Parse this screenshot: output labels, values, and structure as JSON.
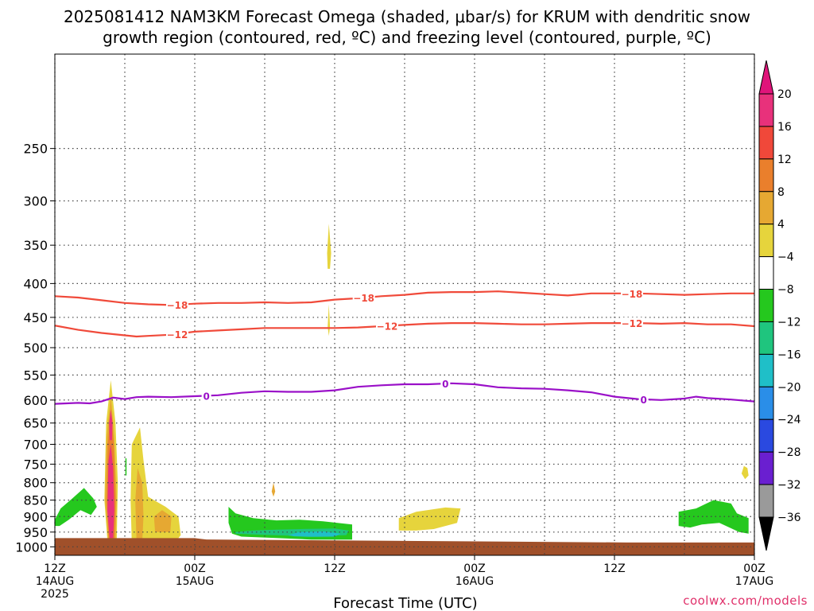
{
  "chart_data": {
    "type": "heatmap",
    "title_line1": "2025081412 NAM3KM Forecast Omega (shaded, μbar/s) for KRUM with dendritic snow",
    "title_line2": "growth region (contoured, red, ºC) and freezing level (contoured, purple, ºC)",
    "xlabel": "Forecast Time (UTC)",
    "credit": "coolwx.com/models",
    "x_hours_range": [
      0,
      60
    ],
    "y_range_hpa": [
      180,
      1030
    ],
    "y_scale": "log",
    "grid": true,
    "y_ticks": [
      250,
      300,
      350,
      400,
      450,
      500,
      550,
      600,
      650,
      700,
      750,
      800,
      850,
      900,
      950,
      1000
    ],
    "x_ticks": [
      {
        "hour": 0,
        "label": "12Z",
        "sub": "14AUG",
        "sub2": "2025"
      },
      {
        "hour": 12,
        "label": "00Z",
        "sub": "15AUG",
        "sub2": ""
      },
      {
        "hour": 24,
        "label": "12Z",
        "sub": "",
        "sub2": ""
      },
      {
        "hour": 36,
        "label": "00Z",
        "sub": "16AUG",
        "sub2": ""
      },
      {
        "hour": 48,
        "label": "12Z",
        "sub": "",
        "sub2": ""
      },
      {
        "hour": 60,
        "label": "00Z",
        "sub": "17AUG",
        "sub2": ""
      }
    ],
    "colorbar": {
      "labels": [
        "20",
        "16",
        "12",
        "8",
        "4",
        "−4",
        "−8",
        "−12",
        "−16",
        "−20",
        "−24",
        "−28",
        "−32",
        "−36"
      ],
      "colors": [
        "#e8317b",
        "#f0483a",
        "#ea7f2c",
        "#e6a832",
        "#e6d43c",
        "#ffffff",
        "#25c81e",
        "#1fc57e",
        "#1fbfc8",
        "#2a8ee8",
        "#2a49e0",
        "#6a1fd0",
        "#a010c0",
        "#9a9a9a"
      ],
      "top_color": "#e0147a",
      "bottom_color": "#000000"
    },
    "contours": [
      {
        "name": "-18",
        "color": "#f04a3a",
        "label": "−18",
        "label_hours": [
          10.5,
          26.5,
          49.5
        ],
        "points": [
          [
            0,
            418
          ],
          [
            2,
            420
          ],
          [
            4,
            424
          ],
          [
            6,
            428
          ],
          [
            8,
            430
          ],
          [
            10,
            431
          ],
          [
            12,
            429
          ],
          [
            14,
            428
          ],
          [
            16,
            428
          ],
          [
            18,
            427
          ],
          [
            20,
            428
          ],
          [
            22,
            427
          ],
          [
            24,
            423
          ],
          [
            26,
            421
          ],
          [
            28,
            418
          ],
          [
            30,
            416
          ],
          [
            32,
            413
          ],
          [
            34,
            412
          ],
          [
            36,
            412
          ],
          [
            38,
            411
          ],
          [
            40,
            413
          ],
          [
            42,
            415
          ],
          [
            44,
            417
          ],
          [
            46,
            414
          ],
          [
            48,
            414
          ],
          [
            50,
            414
          ],
          [
            52,
            415
          ],
          [
            54,
            416
          ],
          [
            56,
            415
          ],
          [
            58,
            414
          ],
          [
            60,
            414
          ]
        ]
      },
      {
        "name": "-12",
        "color": "#f04a3a",
        "label": "−12",
        "label_hours": [
          10.5,
          28.5,
          49.5
        ],
        "points": [
          [
            0,
            463
          ],
          [
            2,
            470
          ],
          [
            4,
            475
          ],
          [
            6,
            479
          ],
          [
            7,
            481
          ],
          [
            8,
            480
          ],
          [
            10,
            478
          ],
          [
            12,
            473
          ],
          [
            14,
            471
          ],
          [
            16,
            469
          ],
          [
            18,
            467
          ],
          [
            20,
            467
          ],
          [
            22,
            467
          ],
          [
            24,
            467
          ],
          [
            26,
            466
          ],
          [
            28,
            464
          ],
          [
            30,
            462
          ],
          [
            32,
            460
          ],
          [
            34,
            459
          ],
          [
            36,
            459
          ],
          [
            38,
            460
          ],
          [
            40,
            461
          ],
          [
            42,
            461
          ],
          [
            44,
            460
          ],
          [
            46,
            459
          ],
          [
            48,
            459
          ],
          [
            50,
            459
          ],
          [
            52,
            460
          ],
          [
            54,
            459
          ],
          [
            56,
            461
          ],
          [
            58,
            461
          ],
          [
            60,
            464
          ]
        ]
      },
      {
        "name": "0",
        "color": "#9a10c8",
        "label": "0",
        "label_hours": [
          13,
          33.5,
          50.5
        ],
        "points": [
          [
            0,
            608
          ],
          [
            2,
            606
          ],
          [
            3,
            607
          ],
          [
            4,
            603
          ],
          [
            5,
            595
          ],
          [
            6,
            598
          ],
          [
            7,
            594
          ],
          [
            8,
            593
          ],
          [
            10,
            594
          ],
          [
            12,
            592
          ],
          [
            14,
            590
          ],
          [
            16,
            585
          ],
          [
            18,
            582
          ],
          [
            20,
            583
          ],
          [
            22,
            583
          ],
          [
            24,
            580
          ],
          [
            26,
            573
          ],
          [
            28,
            570
          ],
          [
            30,
            568
          ],
          [
            32,
            568
          ],
          [
            34,
            566
          ],
          [
            36,
            568
          ],
          [
            38,
            574
          ],
          [
            40,
            576
          ],
          [
            42,
            577
          ],
          [
            44,
            580
          ],
          [
            46,
            584
          ],
          [
            48,
            593
          ],
          [
            50,
            598
          ],
          [
            52,
            600
          ],
          [
            54,
            597
          ],
          [
            55,
            593
          ],
          [
            56,
            596
          ],
          [
            58,
            599
          ],
          [
            60,
            603
          ]
        ]
      }
    ],
    "shaded_regions": [
      {
        "name": "updraft-core-4",
        "color": "#e6d43c",
        "points": [
          [
            4.55,
            1000
          ],
          [
            4.25,
            850
          ],
          [
            4.4,
            650
          ],
          [
            4.8,
            560
          ],
          [
            5.2,
            650
          ],
          [
            5.4,
            800
          ],
          [
            5.3,
            1000
          ]
        ]
      },
      {
        "name": "updraft-core-8",
        "color": "#e6a832",
        "points": [
          [
            4.6,
            990
          ],
          [
            4.3,
            850
          ],
          [
            4.45,
            680
          ],
          [
            4.8,
            590
          ],
          [
            5.1,
            680
          ],
          [
            5.3,
            850
          ],
          [
            5.2,
            990
          ]
        ]
      },
      {
        "name": "updraft-core-12",
        "color": "#ea7f2c",
        "points": [
          [
            4.65,
            980
          ],
          [
            4.45,
            850
          ],
          [
            4.55,
            700
          ],
          [
            4.8,
            620
          ],
          [
            5.05,
            700
          ],
          [
            5.2,
            850
          ],
          [
            5.1,
            980
          ]
        ]
      },
      {
        "name": "updraft-core-20",
        "color": "#e8317b",
        "points": [
          [
            4.7,
            970
          ],
          [
            4.5,
            880
          ],
          [
            4.6,
            740
          ],
          [
            4.8,
            700
          ],
          [
            5.0,
            760
          ],
          [
            5.1,
            880
          ],
          [
            5.0,
            970
          ]
        ]
      },
      {
        "name": "updraft-top-20",
        "color": "#e8317b",
        "points": [
          [
            4.7,
            690
          ],
          [
            4.65,
            650
          ],
          [
            4.8,
            620
          ],
          [
            4.95,
            650
          ],
          [
            4.9,
            690
          ]
        ]
      },
      {
        "name": "updraft-2-4",
        "color": "#e6d43c",
        "points": [
          [
            6.6,
            990
          ],
          [
            6.5,
            850
          ],
          [
            6.6,
            700
          ],
          [
            7.3,
            660
          ],
          [
            7.6,
            740
          ],
          [
            8.0,
            840
          ],
          [
            9.5,
            870
          ],
          [
            10.6,
            900
          ],
          [
            10.8,
            960
          ],
          [
            10.2,
            990
          ]
        ]
      },
      {
        "name": "updraft-2-8",
        "color": "#e6a832",
        "points": [
          [
            7.0,
            980
          ],
          [
            6.9,
            850
          ],
          [
            7.1,
            760
          ],
          [
            7.5,
            800
          ],
          [
            7.6,
            900
          ],
          [
            7.5,
            980
          ]
        ]
      },
      {
        "name": "updraft-2-8b",
        "color": "#e6a832",
        "points": [
          [
            8.6,
            950
          ],
          [
            8.5,
            900
          ],
          [
            9.2,
            880
          ],
          [
            10.0,
            900
          ],
          [
            9.9,
            950
          ]
        ]
      },
      {
        "name": "west-green",
        "color": "#25c81e",
        "points": [
          [
            0,
            910
          ],
          [
            0.5,
            875
          ],
          [
            1.5,
            845
          ],
          [
            2.5,
            815
          ],
          [
            3.3,
            845
          ],
          [
            3.6,
            870
          ],
          [
            3.1,
            895
          ],
          [
            2.2,
            880
          ],
          [
            1.2,
            910
          ],
          [
            0.4,
            930
          ],
          [
            0,
            930
          ]
        ]
      },
      {
        "name": "green-streak",
        "color": "#25c81e",
        "points": [
          [
            6.05,
            780
          ],
          [
            6.05,
            735
          ],
          [
            6.15,
            735
          ],
          [
            6.15,
            780
          ]
        ]
      },
      {
        "name": "central-green",
        "color": "#25c81e",
        "points": [
          [
            14.9,
            920
          ],
          [
            14.9,
            870
          ],
          [
            15.5,
            890
          ],
          [
            17,
            905
          ],
          [
            19,
            912
          ],
          [
            21,
            910
          ],
          [
            23,
            915
          ],
          [
            25.5,
            925
          ],
          [
            25.5,
            975
          ],
          [
            22,
            975
          ],
          [
            19,
            970
          ],
          [
            16,
            965
          ],
          [
            15.2,
            955
          ]
        ]
      },
      {
        "name": "central-teal",
        "color": "#1fc57e",
        "points": [
          [
            15.5,
            950
          ],
          [
            17,
            945
          ],
          [
            19,
            942
          ],
          [
            21,
            940
          ],
          [
            24,
            938
          ],
          [
            25.2,
            945
          ],
          [
            25,
            960
          ],
          [
            23,
            963
          ],
          [
            20,
            962
          ],
          [
            17,
            958
          ],
          [
            15.5,
            955
          ]
        ]
      },
      {
        "name": "central-cyan",
        "color": "#1fbfc8",
        "points": [
          [
            20,
            960
          ],
          [
            21,
            950
          ],
          [
            23,
            948
          ],
          [
            24.5,
            955
          ],
          [
            24,
            965
          ],
          [
            22,
            966
          ],
          [
            20.5,
            964
          ]
        ]
      },
      {
        "name": "mid-yellow",
        "color": "#e6d43c",
        "points": [
          [
            29.5,
            945
          ],
          [
            29.5,
            905
          ],
          [
            31,
            885
          ],
          [
            33.5,
            872
          ],
          [
            34.8,
            875
          ],
          [
            34.5,
            920
          ],
          [
            32.5,
            940
          ],
          [
            31,
            945
          ]
        ]
      },
      {
        "name": "east-green",
        "color": "#25c81e",
        "points": [
          [
            53.5,
            930
          ],
          [
            53.5,
            885
          ],
          [
            55,
            875
          ],
          [
            56.5,
            850
          ],
          [
            58,
            860
          ],
          [
            58.5,
            890
          ],
          [
            59.5,
            905
          ],
          [
            59.5,
            955
          ],
          [
            58.7,
            950
          ],
          [
            57,
            920
          ],
          [
            55.5,
            925
          ],
          [
            54.5,
            935
          ]
        ]
      },
      {
        "name": "east-yellow-blob",
        "color": "#e6d43c",
        "points": [
          [
            58.9,
            775
          ],
          [
            59.1,
            755
          ],
          [
            59.4,
            760
          ],
          [
            59.5,
            780
          ],
          [
            59.2,
            790
          ]
        ]
      },
      {
        "name": "upper-yellow",
        "color": "#e6d43c",
        "points": [
          [
            23.35,
            360
          ],
          [
            23.5,
            325
          ],
          [
            23.7,
            360
          ],
          [
            23.6,
            380
          ],
          [
            23.4,
            380
          ]
        ]
      },
      {
        "name": "mid-yellow-sliver",
        "color": "#e6d43c",
        "points": [
          [
            23.4,
            465
          ],
          [
            23.5,
            430
          ],
          [
            23.6,
            465
          ],
          [
            23.5,
            480
          ]
        ]
      },
      {
        "name": "mid-yellow-drop",
        "color": "#e6a832",
        "points": [
          [
            18.6,
            825
          ],
          [
            18.75,
            800
          ],
          [
            18.9,
            825
          ],
          [
            18.75,
            840
          ]
        ]
      }
    ],
    "ground": {
      "name": "surface",
      "color": "#a0502a",
      "top_hpa_left": 970,
      "top_hpa_right": 985
    }
  }
}
